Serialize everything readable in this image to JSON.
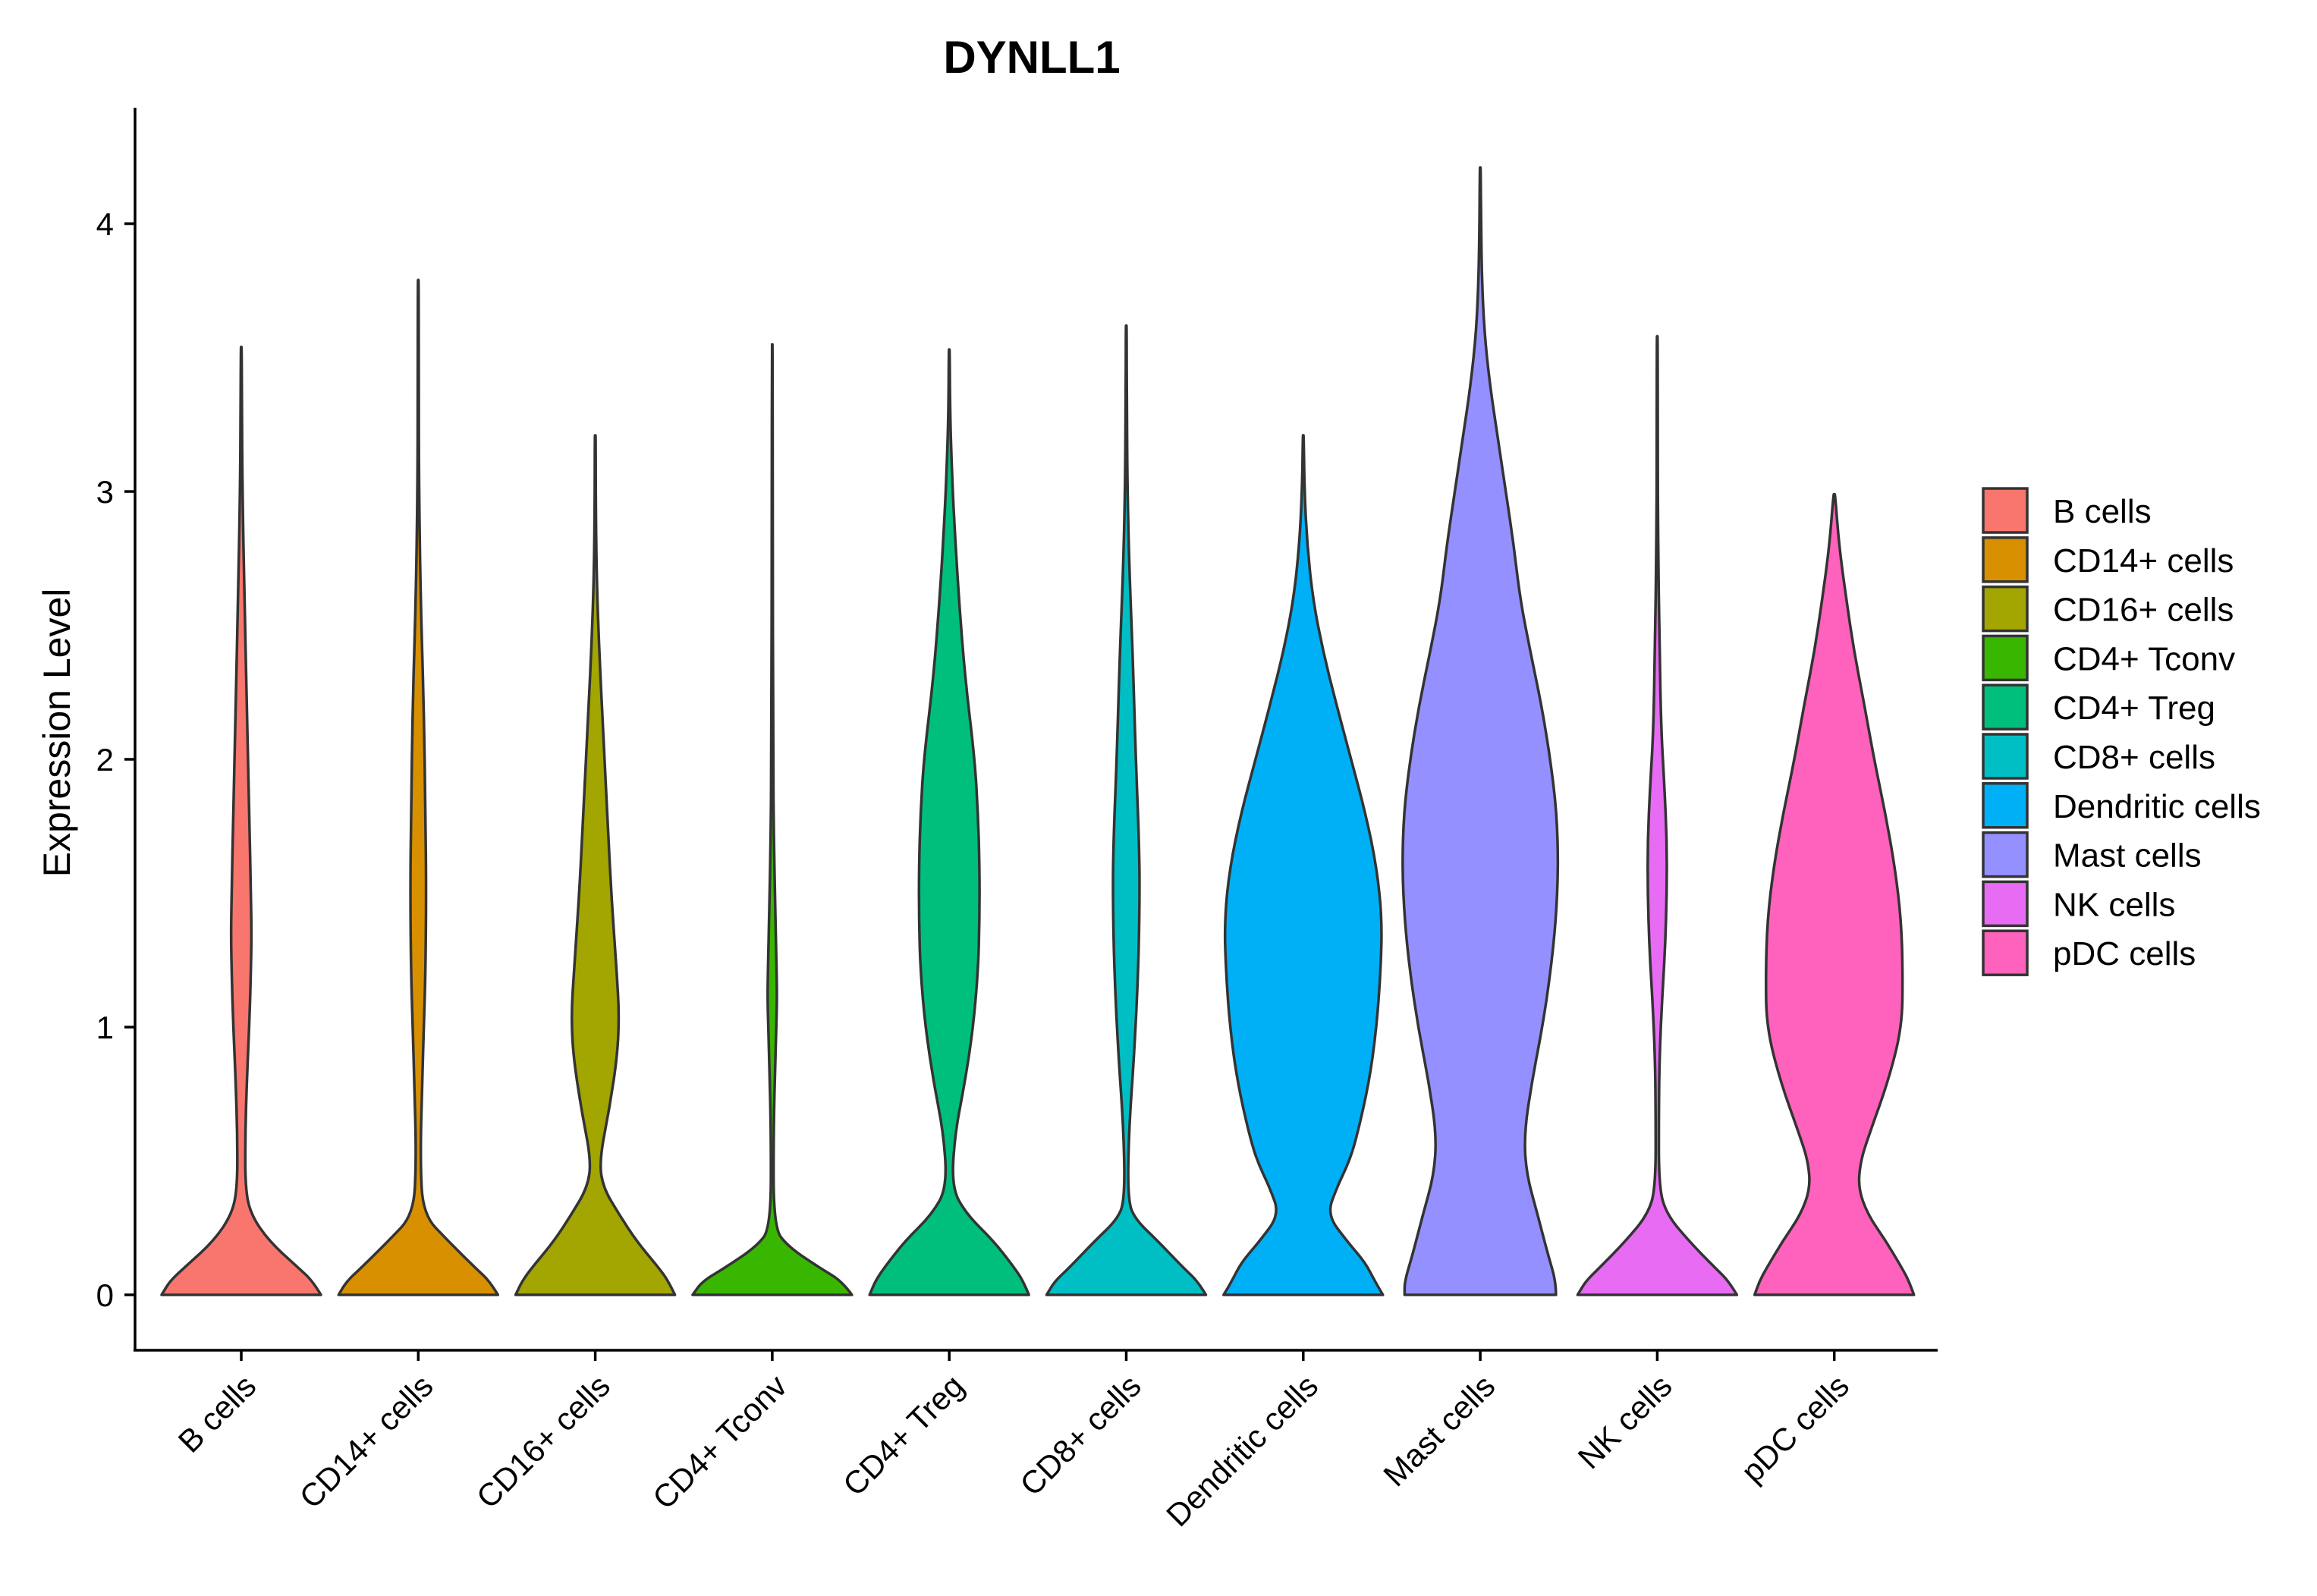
{
  "chart_data": {
    "type": "violin",
    "title": "DYNLL1",
    "xlabel": "",
    "ylabel": "Expression Level",
    "ylim": [
      -0.2,
      4.4
    ],
    "yticks": [
      0,
      1,
      2,
      3,
      4
    ],
    "grid": false,
    "legend_position": "right",
    "categories": [
      "B cells",
      "CD14+ cells",
      "CD16+ cells",
      "CD4+ Tconv",
      "CD4+ Treg",
      "CD8+ cells",
      "Dendritic cells",
      "Mast cells",
      "NK cells",
      "pDC cells"
    ],
    "colors": [
      "#F8766D",
      "#D89000",
      "#A3A500",
      "#39B600",
      "#00BF7D",
      "#00BFC4",
      "#00B0F6",
      "#9590FF",
      "#E76BF3",
      "#FF62BC"
    ],
    "series": [
      {
        "name": "B cells",
        "max": 3.54,
        "profile": [
          [
            0,
            1.0
          ],
          [
            0.05,
            0.9
          ],
          [
            0.1,
            0.72
          ],
          [
            0.2,
            0.35
          ],
          [
            0.3,
            0.12
          ],
          [
            0.4,
            0.05
          ],
          [
            0.6,
            0.05
          ],
          [
            0.8,
            0.07
          ],
          [
            1.0,
            0.1
          ],
          [
            1.2,
            0.12
          ],
          [
            1.35,
            0.13
          ],
          [
            1.5,
            0.12
          ],
          [
            1.8,
            0.1
          ],
          [
            2.2,
            0.07
          ],
          [
            2.6,
            0.04
          ],
          [
            3.0,
            0.015
          ],
          [
            3.3,
            0.008
          ],
          [
            3.54,
            0.005
          ]
        ]
      },
      {
        "name": "CD14+ cells",
        "max": 3.79,
        "profile": [
          [
            0,
            1.0
          ],
          [
            0.05,
            0.9
          ],
          [
            0.1,
            0.72
          ],
          [
            0.2,
            0.38
          ],
          [
            0.3,
            0.06
          ],
          [
            0.5,
            0.025
          ],
          [
            0.8,
            0.05
          ],
          [
            1.0,
            0.07
          ],
          [
            1.2,
            0.09
          ],
          [
            1.5,
            0.1
          ],
          [
            1.8,
            0.09
          ],
          [
            2.2,
            0.07
          ],
          [
            2.6,
            0.03
          ],
          [
            3.0,
            0.01
          ],
          [
            3.4,
            0.006
          ],
          [
            3.79,
            0.005
          ]
        ]
      },
      {
        "name": "CD16+ cells",
        "max": 3.21,
        "profile": [
          [
            0,
            1.0
          ],
          [
            0.05,
            0.92
          ],
          [
            0.1,
            0.8
          ],
          [
            0.2,
            0.52
          ],
          [
            0.3,
            0.3
          ],
          [
            0.4,
            0.1
          ],
          [
            0.5,
            0.05
          ],
          [
            0.7,
            0.18
          ],
          [
            0.9,
            0.28
          ],
          [
            1.05,
            0.3
          ],
          [
            1.2,
            0.27
          ],
          [
            1.5,
            0.2
          ],
          [
            1.8,
            0.15
          ],
          [
            2.1,
            0.1
          ],
          [
            2.4,
            0.05
          ],
          [
            2.7,
            0.015
          ],
          [
            3.0,
            0.006
          ],
          [
            3.21,
            0.005
          ]
        ]
      },
      {
        "name": "CD4+ Tconv",
        "max": 3.55,
        "profile": [
          [
            0,
            1.0
          ],
          [
            0.05,
            0.88
          ],
          [
            0.1,
            0.6
          ],
          [
            0.18,
            0.2
          ],
          [
            0.25,
            0.02
          ],
          [
            0.6,
            0.015
          ],
          [
            0.9,
            0.04
          ],
          [
            1.1,
            0.06
          ],
          [
            1.2,
            0.055
          ],
          [
            1.4,
            0.04
          ],
          [
            1.7,
            0.02
          ],
          [
            2.0,
            0.01
          ],
          [
            3.0,
            0.005
          ],
          [
            3.55,
            0.004
          ]
        ]
      },
      {
        "name": "CD4+ Treg",
        "max": 3.53,
        "profile": [
          [
            0,
            1.0
          ],
          [
            0.05,
            0.93
          ],
          [
            0.1,
            0.82
          ],
          [
            0.2,
            0.56
          ],
          [
            0.3,
            0.22
          ],
          [
            0.4,
            0.03
          ],
          [
            0.6,
            0.07
          ],
          [
            0.8,
            0.2
          ],
          [
            1.0,
            0.3
          ],
          [
            1.2,
            0.36
          ],
          [
            1.4,
            0.38
          ],
          [
            1.6,
            0.38
          ],
          [
            1.8,
            0.36
          ],
          [
            2.0,
            0.32
          ],
          [
            2.3,
            0.2
          ],
          [
            2.6,
            0.12
          ],
          [
            2.9,
            0.06
          ],
          [
            3.1,
            0.03
          ],
          [
            3.3,
            0.01
          ],
          [
            3.53,
            0.005
          ]
        ]
      },
      {
        "name": "CD8+ cells",
        "max": 3.62,
        "profile": [
          [
            0,
            1.0
          ],
          [
            0.05,
            0.9
          ],
          [
            0.1,
            0.72
          ],
          [
            0.2,
            0.4
          ],
          [
            0.28,
            0.12
          ],
          [
            0.35,
            0.02
          ],
          [
            0.6,
            0.03
          ],
          [
            0.9,
            0.1
          ],
          [
            1.2,
            0.15
          ],
          [
            1.5,
            0.17
          ],
          [
            1.7,
            0.16
          ],
          [
            2.0,
            0.12
          ],
          [
            2.4,
            0.08
          ],
          [
            2.7,
            0.04
          ],
          [
            3.0,
            0.015
          ],
          [
            3.3,
            0.007
          ],
          [
            3.62,
            0.005
          ]
        ]
      },
      {
        "name": "Dendritic cells",
        "max": 3.21,
        "profile": [
          [
            0,
            1.0
          ],
          [
            0.05,
            0.9
          ],
          [
            0.12,
            0.78
          ],
          [
            0.2,
            0.55
          ],
          [
            0.3,
            0.3
          ],
          [
            0.4,
            0.42
          ],
          [
            0.5,
            0.58
          ],
          [
            0.6,
            0.68
          ],
          [
            0.8,
            0.83
          ],
          [
            1.0,
            0.92
          ],
          [
            1.2,
            0.97
          ],
          [
            1.4,
            0.99
          ],
          [
            1.6,
            0.92
          ],
          [
            1.8,
            0.78
          ],
          [
            2.0,
            0.6
          ],
          [
            2.2,
            0.42
          ],
          [
            2.4,
            0.25
          ],
          [
            2.6,
            0.12
          ],
          [
            2.8,
            0.05
          ],
          [
            3.0,
            0.015
          ],
          [
            3.21,
            0.005
          ]
        ]
      },
      {
        "name": "Mast cells",
        "max": 4.21,
        "profile": [
          [
            0,
            0.95
          ],
          [
            0.05,
            0.95
          ],
          [
            0.15,
            0.85
          ],
          [
            0.3,
            0.72
          ],
          [
            0.45,
            0.58
          ],
          [
            0.6,
            0.55
          ],
          [
            0.8,
            0.65
          ],
          [
            1.0,
            0.78
          ],
          [
            1.2,
            0.88
          ],
          [
            1.4,
            0.95
          ],
          [
            1.6,
            0.98
          ],
          [
            1.8,
            0.96
          ],
          [
            2.0,
            0.88
          ],
          [
            2.2,
            0.77
          ],
          [
            2.4,
            0.63
          ],
          [
            2.6,
            0.5
          ],
          [
            2.8,
            0.42
          ],
          [
            3.0,
            0.32
          ],
          [
            3.2,
            0.22
          ],
          [
            3.4,
            0.12
          ],
          [
            3.6,
            0.05
          ],
          [
            3.8,
            0.02
          ],
          [
            4.0,
            0.01
          ],
          [
            4.21,
            0.005
          ]
        ]
      },
      {
        "name": "NK cells",
        "max": 3.58,
        "profile": [
          [
            0,
            1.0
          ],
          [
            0.05,
            0.9
          ],
          [
            0.1,
            0.73
          ],
          [
            0.2,
            0.4
          ],
          [
            0.3,
            0.12
          ],
          [
            0.4,
            0.02
          ],
          [
            0.7,
            0.02
          ],
          [
            0.9,
            0.03
          ],
          [
            1.1,
            0.06
          ],
          [
            1.3,
            0.1
          ],
          [
            1.5,
            0.12
          ],
          [
            1.7,
            0.12
          ],
          [
            1.9,
            0.09
          ],
          [
            2.1,
            0.05
          ],
          [
            2.4,
            0.03
          ],
          [
            2.8,
            0.01
          ],
          [
            3.2,
            0.006
          ],
          [
            3.58,
            0.005
          ]
        ]
      },
      {
        "name": "pDC cells",
        "max": 2.99,
        "profile": [
          [
            0,
            1.0
          ],
          [
            0.05,
            0.94
          ],
          [
            0.1,
            0.85
          ],
          [
            0.2,
            0.65
          ],
          [
            0.3,
            0.42
          ],
          [
            0.4,
            0.3
          ],
          [
            0.5,
            0.33
          ],
          [
            0.6,
            0.44
          ],
          [
            0.8,
            0.68
          ],
          [
            1.0,
            0.85
          ],
          [
            1.2,
            0.86
          ],
          [
            1.4,
            0.84
          ],
          [
            1.6,
            0.76
          ],
          [
            1.8,
            0.64
          ],
          [
            2.0,
            0.5
          ],
          [
            2.2,
            0.38
          ],
          [
            2.4,
            0.25
          ],
          [
            2.6,
            0.15
          ],
          [
            2.8,
            0.06
          ],
          [
            2.99,
            0.01
          ]
        ]
      }
    ]
  }
}
